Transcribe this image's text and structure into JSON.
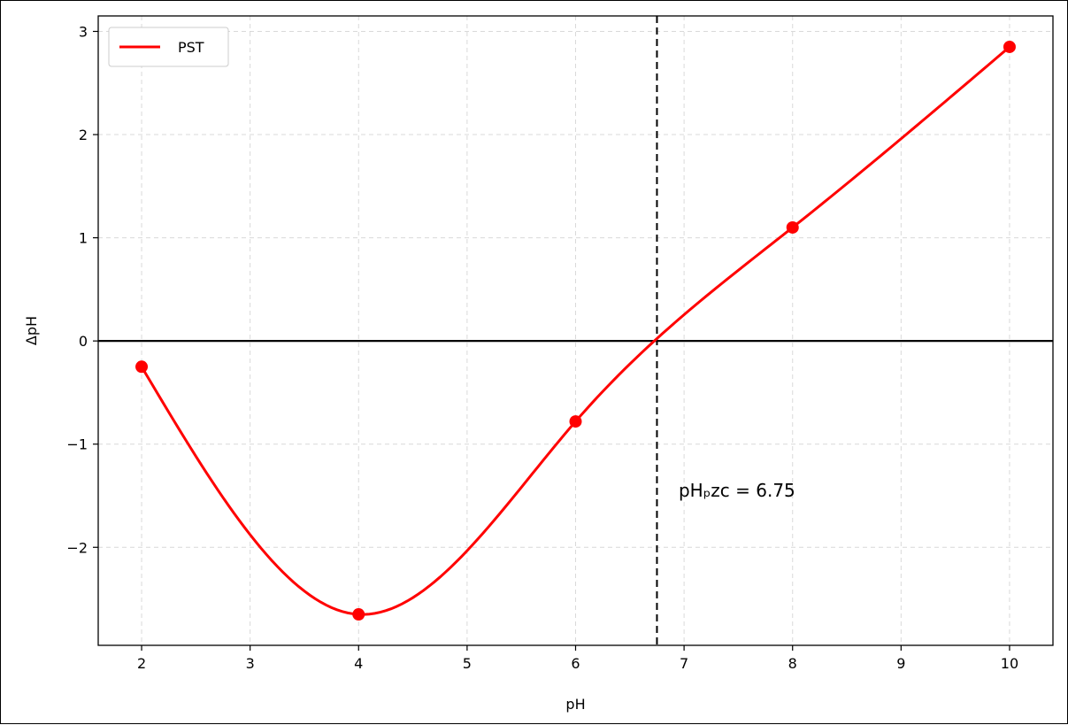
{
  "chart_data": {
    "type": "line",
    "xlabel": "pH",
    "ylabel": "ΔpH",
    "xlim": [
      1.6,
      10.4
    ],
    "ylim": [
      -2.95,
      3.15
    ],
    "xticks": [
      2,
      3,
      4,
      5,
      6,
      7,
      8,
      9,
      10
    ],
    "yticks": [
      -2,
      -1,
      0,
      1,
      2,
      3
    ],
    "xtick_labels": [
      "2",
      "3",
      "4",
      "5",
      "6",
      "7",
      "8",
      "9",
      "10"
    ],
    "ytick_labels": [
      "−2",
      "−1",
      "0",
      "1",
      "2",
      "3"
    ],
    "grid": true,
    "legend_position": "top-left",
    "series": [
      {
        "name": "PST",
        "color": "#ff0000",
        "x": [
          2,
          4,
          6,
          8,
          10
        ],
        "y": [
          -0.25,
          -2.65,
          -0.78,
          1.1,
          2.85
        ],
        "markers": true,
        "smooth": true
      }
    ],
    "reference_lines": {
      "horizontal_y": 0,
      "vertical_x": 6.75
    },
    "annotation": {
      "text": "pHₚzc = 6.75",
      "x": 6.95,
      "y": -1.45
    }
  }
}
